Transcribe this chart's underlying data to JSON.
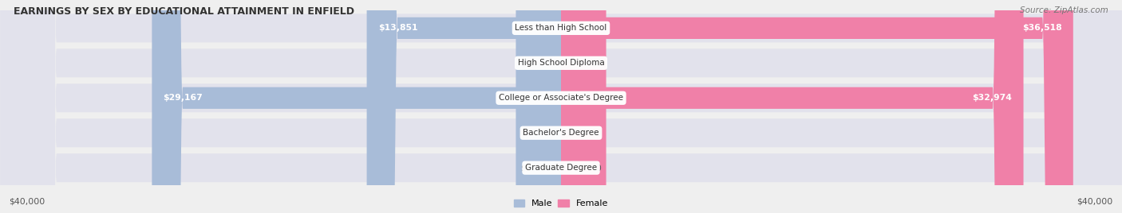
{
  "title": "EARNINGS BY SEX BY EDUCATIONAL ATTAINMENT IN ENFIELD",
  "source": "Source: ZipAtlas.com",
  "categories": [
    "Less than High School",
    "High School Diploma",
    "College or Associate's Degree",
    "Bachelor's Degree",
    "Graduate Degree"
  ],
  "male_values": [
    13851,
    0,
    29167,
    0,
    0
  ],
  "female_values": [
    36518,
    0,
    32974,
    0,
    0
  ],
  "male_color": "#a8bcd8",
  "female_color": "#f080a8",
  "male_label": "Male",
  "female_label": "Female",
  "axis_max": 40000,
  "zero_stub": 3200,
  "background_color": "#efefef",
  "row_bg_color": "#e2e2ec",
  "title_fontsize": 9.0,
  "source_fontsize": 7.5,
  "value_fontsize": 7.8,
  "category_fontsize": 7.5,
  "legend_fontsize": 8.0,
  "axis_label_fontsize": 7.8
}
